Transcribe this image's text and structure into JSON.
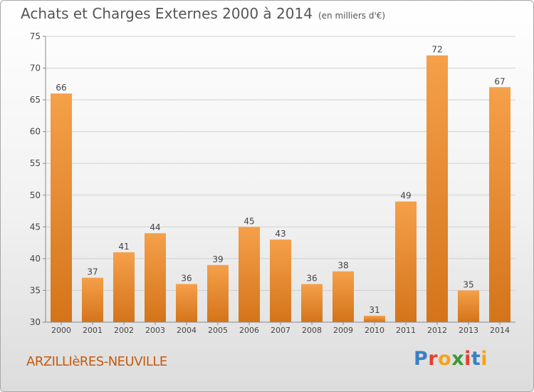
{
  "header": {
    "title": "Achats et Charges Externes 2000 à 2014",
    "subtitle": "(en milliers d'€)"
  },
  "footer": {
    "town": "ARZILLIèRES-NEUVILLE"
  },
  "logo": {
    "letters": [
      "P",
      "r",
      "o",
      "x",
      "i",
      "t",
      "i"
    ],
    "colors": [
      "#3a7fc4",
      "#e6402e",
      "#f5a31a",
      "#3a9a3a",
      "#e6402e",
      "#3a7fc4",
      "#f5a31a"
    ]
  },
  "chart_data": {
    "type": "bar",
    "title": "Achats et Charges Externes 2000 à 2014",
    "categories": [
      "2000",
      "2001",
      "2002",
      "2003",
      "2004",
      "2005",
      "2006",
      "2007",
      "2008",
      "2009",
      "2010",
      "2011",
      "2012",
      "2013",
      "2014"
    ],
    "values": [
      66,
      37,
      41,
      44,
      36,
      39,
      45,
      43,
      36,
      38,
      31,
      49,
      72,
      35,
      67
    ],
    "ylim": [
      30,
      75
    ],
    "yticks": [
      30,
      35,
      40,
      45,
      50,
      55,
      60,
      65,
      70,
      75
    ],
    "grid": true,
    "bar_color": "#f5a04a",
    "bar_color_dark": "#d4741a"
  }
}
